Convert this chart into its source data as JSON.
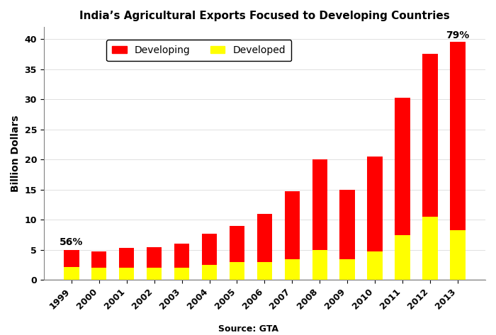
{
  "years": [
    "1999",
    "2000",
    "2001",
    "2002",
    "2003",
    "2004",
    "2005",
    "2006",
    "2007",
    "2008",
    "2009",
    "2010",
    "2011",
    "2012",
    "2013"
  ],
  "developed": [
    2.2,
    2.0,
    2.0,
    2.0,
    2.0,
    2.5,
    3.0,
    3.0,
    3.5,
    5.0,
    3.5,
    4.7,
    7.5,
    10.5,
    8.3
  ],
  "developing": [
    2.8,
    2.8,
    3.3,
    3.5,
    4.0,
    5.2,
    6.0,
    8.0,
    11.2,
    15.0,
    11.5,
    15.8,
    22.8,
    27.0,
    31.2
  ],
  "developing_color": "#FF0000",
  "developed_color": "#FFFF00",
  "title": "India’s Agricultural Exports Focused to Developing Countries",
  "ylabel": "Billion Dollars",
  "source": "Source: GTA",
  "ylim": [
    0,
    42
  ],
  "annotation_1999": "56%",
  "annotation_2013": "79%",
  "legend_developing": "Developing",
  "legend_developed": "Developed",
  "background_color": "#FFFFFF",
  "plot_background_color": "#FFFFFF"
}
